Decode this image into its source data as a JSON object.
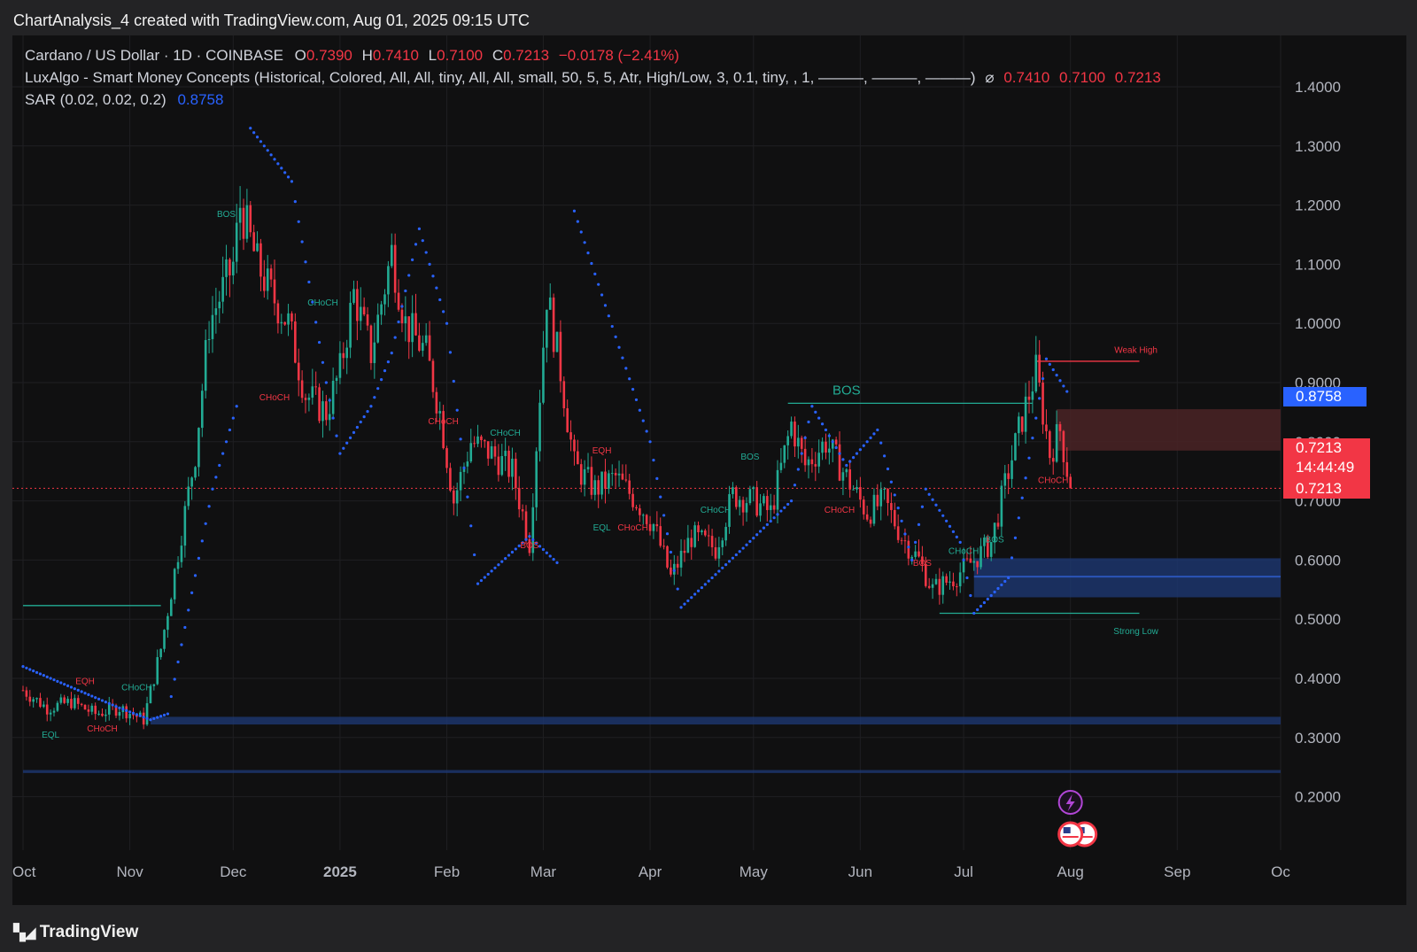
{
  "header": {
    "caption": "ChartAnalysis_4 created with TradingView.com, Aug 01, 2025 09:15 UTC"
  },
  "legend": {
    "symbol": "Cardano / US Dollar · 1D · COINBASE",
    "o_label": "O",
    "o_value": "0.7390",
    "h_label": "H",
    "h_value": "0.7410",
    "l_label": "L",
    "l_value": "0.7100",
    "c_label": "C",
    "c_value": "0.7213",
    "change": "−0.0178 (−2.41%)",
    "smc_label": "LuxAlgo - Smart Money Concepts (Historical, Colored, All, All, tiny, All, All, small, 50, 5, 5, Atr, High/Low, 3, 0.1, tiny, , 1, ———, ———, ———)",
    "smc_symbol": "⌀",
    "smc_v1": "0.7410",
    "smc_v2": "0.7100",
    "smc_v3": "0.7213",
    "sar_label": "SAR (0.02, 0.02, 0.2)",
    "sar_value": "0.8758"
  },
  "price_tags": {
    "sar": "0.8758",
    "last": "0.7213",
    "countdown": "14:44:49",
    "close": "0.7213"
  },
  "footer": {
    "brand": "TradingView"
  },
  "colors": {
    "up": "#22ab94",
    "down": "#f23645",
    "sar": "#2962ff",
    "zone_blue": "#1e3a78",
    "zone_red": "#4a2326"
  },
  "chart_data": {
    "type": "candlestick",
    "title": "Cardano / US Dollar · 1D · COINBASE",
    "y_axis": {
      "ticks": [
        "1.4000",
        "1.3000",
        "1.2000",
        "1.1000",
        "1.0000",
        "0.9000",
        "0.8000",
        "0.7000",
        "0.6000",
        "0.5000",
        "0.4000",
        "0.3000",
        "0.2000"
      ],
      "range": [
        0.13,
        1.46
      ]
    },
    "x_axis": {
      "labels": [
        "Oct",
        "Nov",
        "Dec",
        "2025",
        "Feb",
        "Mar",
        "Apr",
        "May",
        "Jun",
        "Jul",
        "Aug",
        "Sep",
        "Oc"
      ]
    },
    "price_path": [
      [
        "2024-10-01",
        0.38
      ],
      [
        "2024-10-08",
        0.35
      ],
      [
        "2024-10-15",
        0.36
      ],
      [
        "2024-10-22",
        0.34
      ],
      [
        "2024-10-29",
        0.35
      ],
      [
        "2024-11-05",
        0.33
      ],
      [
        "2024-11-10",
        0.45
      ],
      [
        "2024-11-14",
        0.58
      ],
      [
        "2024-11-20",
        0.78
      ],
      [
        "2024-11-24",
        1.0
      ],
      [
        "2024-12-01",
        1.1
      ],
      [
        "2024-12-03",
        1.2
      ],
      [
        "2024-12-08",
        1.1
      ],
      [
        "2024-12-12",
        1.05
      ],
      [
        "2024-12-17",
        1.0
      ],
      [
        "2024-12-22",
        0.88
      ],
      [
        "2024-12-28",
        0.85
      ],
      [
        "2025-01-01",
        0.92
      ],
      [
        "2025-01-05",
        1.05
      ],
      [
        "2025-01-10",
        0.95
      ],
      [
        "2025-01-16",
        1.12
      ],
      [
        "2025-01-20",
        1.0
      ],
      [
        "2025-01-26",
        0.95
      ],
      [
        "2025-01-30",
        0.85
      ],
      [
        "2025-02-03",
        0.7
      ],
      [
        "2025-02-08",
        0.8
      ],
      [
        "2025-02-14",
        0.78
      ],
      [
        "2025-02-20",
        0.75
      ],
      [
        "2025-02-25",
        0.63
      ],
      [
        "2025-03-02",
        1.05
      ],
      [
        "2025-03-06",
        0.92
      ],
      [
        "2025-03-10",
        0.76
      ],
      [
        "2025-03-16",
        0.72
      ],
      [
        "2025-03-22",
        0.74
      ],
      [
        "2025-03-28",
        0.7
      ],
      [
        "2025-04-02",
        0.66
      ],
      [
        "2025-04-07",
        0.57
      ],
      [
        "2025-04-13",
        0.64
      ],
      [
        "2025-04-20",
        0.62
      ],
      [
        "2025-04-25",
        0.71
      ],
      [
        "2025-05-01",
        0.7
      ],
      [
        "2025-05-06",
        0.68
      ],
      [
        "2025-05-12",
        0.83
      ],
      [
        "2025-05-16",
        0.76
      ],
      [
        "2025-05-22",
        0.8
      ],
      [
        "2025-05-28",
        0.74
      ],
      [
        "2025-06-03",
        0.68
      ],
      [
        "2025-06-08",
        0.7
      ],
      [
        "2025-06-13",
        0.64
      ],
      [
        "2025-06-18",
        0.6
      ],
      [
        "2025-06-22",
        0.55
      ],
      [
        "2025-06-28",
        0.57
      ],
      [
        "2025-07-04",
        0.6
      ],
      [
        "2025-07-09",
        0.63
      ],
      [
        "2025-07-14",
        0.75
      ],
      [
        "2025-07-18",
        0.84
      ],
      [
        "2025-07-22",
        0.92
      ],
      [
        "2025-07-26",
        0.78
      ],
      [
        "2025-07-29",
        0.82
      ],
      [
        "2025-08-01",
        0.7213
      ]
    ],
    "psar_path": [
      [
        "2024-10-01",
        0.42
      ],
      [
        "2024-10-29",
        0.35
      ],
      [
        "2024-11-07",
        0.33
      ],
      [
        "2024-11-12",
        0.34
      ],
      [
        "2024-11-25",
        0.72
      ],
      [
        "2024-12-03",
        0.88
      ],
      [
        "2024-12-06",
        1.33
      ],
      [
        "2024-12-18",
        1.24
      ],
      [
        "2024-12-28",
        0.9
      ],
      [
        "2025-01-01",
        0.78
      ],
      [
        "2025-01-10",
        0.86
      ],
      [
        "2025-01-16",
        0.95
      ],
      [
        "2025-01-24",
        1.16
      ],
      [
        "2025-02-01",
        1.0
      ],
      [
        "2025-02-10",
        0.56
      ],
      [
        "2025-02-25",
        0.64
      ],
      [
        "2025-03-06",
        0.59
      ],
      [
        "2025-03-10",
        1.19
      ],
      [
        "2025-04-01",
        0.8
      ],
      [
        "2025-04-10",
        0.52
      ],
      [
        "2025-04-28",
        0.62
      ],
      [
        "2025-05-12",
        0.7
      ],
      [
        "2025-05-18",
        0.86
      ],
      [
        "2025-05-28",
        0.76
      ],
      [
        "2025-06-06",
        0.82
      ],
      [
        "2025-06-16",
        0.6
      ],
      [
        "2025-06-20",
        0.72
      ],
      [
        "2025-06-30",
        0.63
      ],
      [
        "2025-07-04",
        0.51
      ],
      [
        "2025-07-14",
        0.57
      ],
      [
        "2025-07-22",
        0.84
      ],
      [
        "2025-07-25",
        0.94
      ],
      [
        "2025-08-01",
        0.8758
      ]
    ],
    "annotations": [
      {
        "text": "BOS",
        "date": "2024-11-29",
        "price": 1.18,
        "side": "bull"
      },
      {
        "text": "CHoCH",
        "date": "2024-12-27",
        "price": 1.03,
        "side": "bull"
      },
      {
        "text": "CHoCH",
        "date": "2024-12-13",
        "price": 0.87,
        "side": "bear"
      },
      {
        "text": "CHoCH",
        "date": "2025-01-31",
        "price": 0.83,
        "side": "bear"
      },
      {
        "text": "CHoCH",
        "date": "2025-02-18",
        "price": 0.81,
        "side": "bull"
      },
      {
        "text": "BOS",
        "date": "2025-02-25",
        "price": 0.62,
        "side": "bear"
      },
      {
        "text": "EQH",
        "date": "2025-03-18",
        "price": 0.78,
        "side": "bear"
      },
      {
        "text": "EQL",
        "date": "2025-03-18",
        "price": 0.65,
        "side": "bull"
      },
      {
        "text": "CHoCH",
        "date": "2025-03-27",
        "price": 0.65,
        "side": "bear"
      },
      {
        "text": "CHoCH",
        "date": "2025-04-20",
        "price": 0.68,
        "side": "bull"
      },
      {
        "text": "BOS",
        "date": "2025-04-30",
        "price": 0.77,
        "side": "bull"
      },
      {
        "text": "BOS",
        "date": "2025-05-28",
        "price": 0.88,
        "side": "bull"
      },
      {
        "text": "CHoCH",
        "date": "2025-05-26",
        "price": 0.68,
        "side": "bear"
      },
      {
        "text": "BOS",
        "date": "2025-06-19",
        "price": 0.59,
        "side": "bear"
      },
      {
        "text": "CHoCH",
        "date": "2025-07-01",
        "price": 0.61,
        "side": "bull"
      },
      {
        "text": "BOS",
        "date": "2025-07-10",
        "price": 0.63,
        "side": "bull"
      },
      {
        "text": "CHoCH",
        "date": "2025-07-27",
        "price": 0.73,
        "side": "bear"
      },
      {
        "text": "EQH",
        "date": "2024-10-19",
        "price": 0.39,
        "side": "bear"
      },
      {
        "text": "EQL",
        "date": "2024-10-09",
        "price": 0.3,
        "side": "bull"
      },
      {
        "text": "CHoCH",
        "date": "2024-10-24",
        "price": 0.31,
        "side": "bear"
      },
      {
        "text": "CHoCH",
        "date": "2024-11-03",
        "price": 0.38,
        "side": "bull"
      },
      {
        "text": "Weak High",
        "date": "2025-08-20",
        "price": 0.95,
        "side": "bear"
      },
      {
        "text": "Strong Low",
        "date": "2025-08-20",
        "price": 0.475,
        "side": "bull"
      }
    ],
    "levels": [
      {
        "type": "weak_high",
        "price": 0.936,
        "from": "2025-07-22",
        "to": "2025-08-21"
      },
      {
        "type": "strong_low",
        "price": 0.51,
        "from": "2025-06-24",
        "to": "2025-08-21"
      },
      {
        "type": "bos_line",
        "price": 0.865,
        "from": "2025-05-11",
        "to": "2025-07-21"
      },
      {
        "type": "old_level",
        "price": 0.523,
        "from": "2024-10-01",
        "to": "2024-11-10"
      }
    ],
    "zones": [
      {
        "kind": "bearish_ob",
        "top": 0.855,
        "bottom": 0.785,
        "from": "2025-07-28",
        "to": "2025-10-01"
      },
      {
        "kind": "bullish_ob",
        "top": 0.603,
        "bottom": 0.537,
        "from": "2025-07-04",
        "to": "2025-10-01"
      },
      {
        "kind": "bullish_ob",
        "top": 0.335,
        "bottom": 0.322,
        "from": "2024-11-07",
        "to": "2025-10-01"
      },
      {
        "kind": "bullish_ob",
        "top": 0.245,
        "bottom": 0.24,
        "from": "2024-10-01",
        "to": "2025-10-01"
      }
    ],
    "last_price": 0.7213,
    "grid": true
  }
}
